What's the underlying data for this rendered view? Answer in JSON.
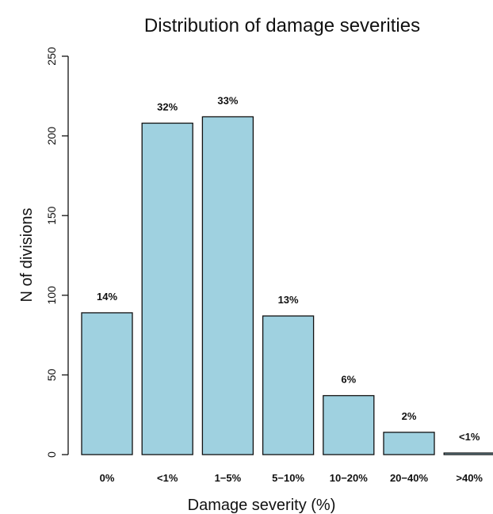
{
  "chart_data": {
    "type": "bar",
    "title": "Distribution of damage severities",
    "xlabel": "Damage severity (%)",
    "ylabel": "N of divisions",
    "categories": [
      "0%",
      "<1%",
      "1-5%",
      "5-10%",
      "10-20%",
      "20-40%",
      ">40%"
    ],
    "category_labels": [
      "0%",
      "<1%",
      "1−5%",
      "5−10%",
      "10−20%",
      "20−40%",
      ">40%"
    ],
    "values": [
      89,
      208,
      212,
      87,
      37,
      14,
      1
    ],
    "data_labels": [
      "14%",
      "32%",
      "33%",
      "13%",
      "6%",
      "2%",
      "<1%"
    ],
    "ylim": [
      0,
      250
    ],
    "yticks": [
      "0",
      "50",
      "100",
      "150",
      "200",
      "250"
    ],
    "grid": false,
    "bar_color": "#9fd1e0"
  }
}
